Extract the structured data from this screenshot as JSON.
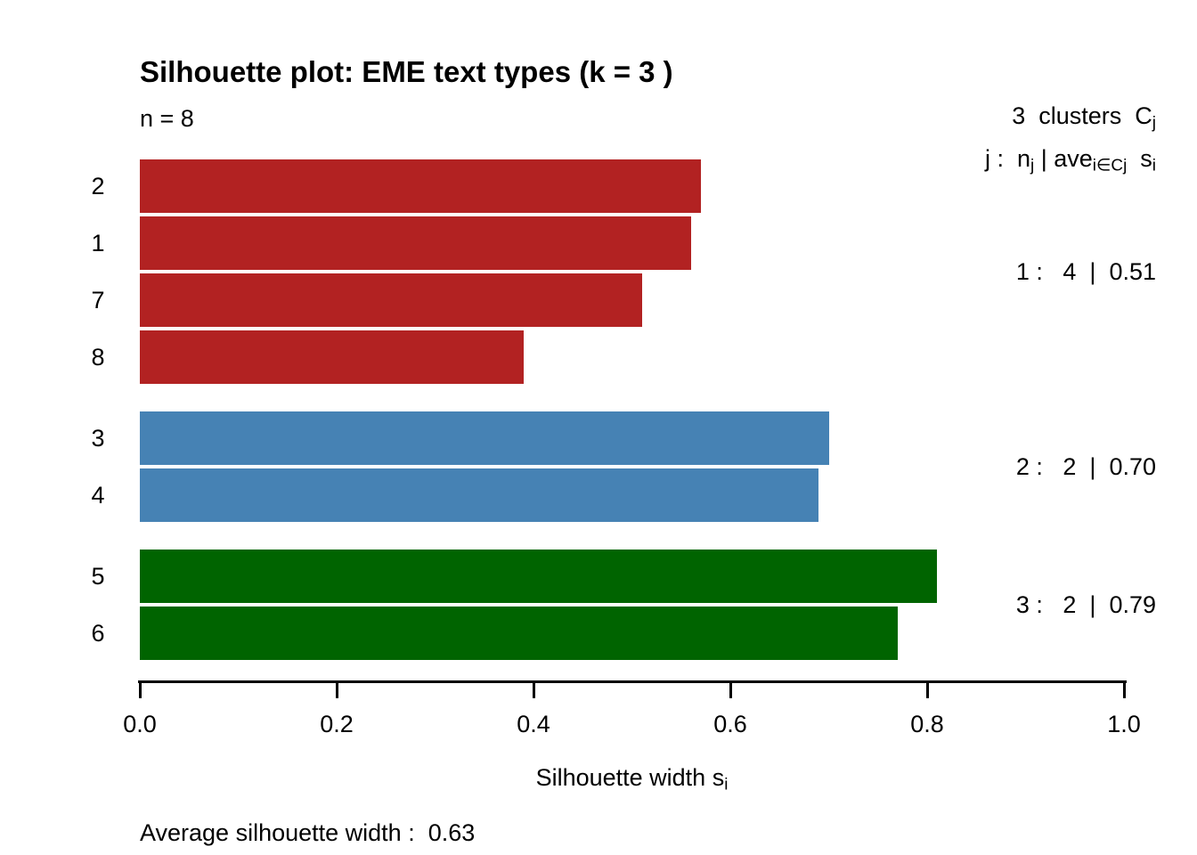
{
  "title": "Silhouette plot: EME text types (k = 3 )",
  "n_label": "n = 8",
  "legend": {
    "line1_pre": "3  clusters  C",
    "line1_sub": "j",
    "line2_p1": "j :  n",
    "line2_s1": "j",
    "line2_p2": " | ave",
    "line2_s2": "i∈Cj",
    "line2_p3": "  s",
    "line2_s3": "i"
  },
  "xlabel_pre": "Silhouette width s",
  "xlabel_sub": "i",
  "footer": "Average silhouette width :  0.63",
  "chart_data": {
    "type": "bar",
    "orientation": "horizontal",
    "title": "Silhouette plot: EME text types (k = 3 )",
    "xlabel": "Silhouette width s_i",
    "n": 8,
    "k": 3,
    "xlim": [
      0,
      1
    ],
    "x_tick_values": [
      0,
      0.2,
      0.4,
      0.6,
      0.8,
      1.0
    ],
    "x_tick_labels": [
      "0.0",
      "0.2",
      "0.4",
      "0.6",
      "0.8",
      "1.0"
    ],
    "average_silhouette_width": 0.63,
    "grid": false,
    "clusters": [
      {
        "j": 1,
        "size": 4,
        "avg_width": 0.51,
        "stat_label": "1 :   4  |  0.51",
        "color": "#b22222",
        "observations": [
          {
            "label": "2",
            "value": 0.57
          },
          {
            "label": "1",
            "value": 0.56
          },
          {
            "label": "7",
            "value": 0.51
          },
          {
            "label": "8",
            "value": 0.39
          }
        ]
      },
      {
        "j": 2,
        "size": 2,
        "avg_width": 0.7,
        "stat_label": "2 :   2  |  0.70",
        "color": "#4682b4",
        "observations": [
          {
            "label": "3",
            "value": 0.7
          },
          {
            "label": "4",
            "value": 0.69
          }
        ]
      },
      {
        "j": 3,
        "size": 2,
        "avg_width": 0.79,
        "stat_label": "3 :   2  |  0.79",
        "color": "#006400",
        "observations": [
          {
            "label": "5",
            "value": 0.81
          },
          {
            "label": "6",
            "value": 0.77
          }
        ]
      }
    ]
  }
}
